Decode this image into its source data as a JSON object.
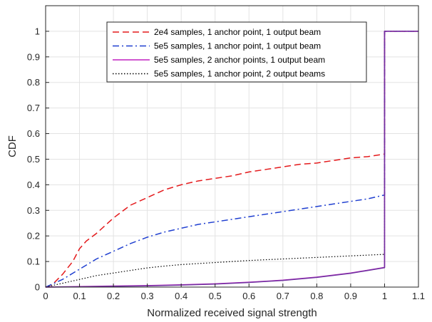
{
  "chart_data": {
    "type": "line",
    "title": "",
    "xlabel": "Normalized received signal strength",
    "ylabel": "CDF",
    "xlim": [
      0,
      1.1
    ],
    "ylim": [
      0,
      1.1
    ],
    "grid": true,
    "legend_position": "top-center",
    "x_ticks": [
      "0",
      "0.1",
      "0.2",
      "0.3",
      "0.4",
      "0.5",
      "0.6",
      "0.7",
      "0.8",
      "0.9",
      "1",
      "1.1"
    ],
    "y_ticks": [
      "0",
      "0.1",
      "0.2",
      "0.3",
      "0.4",
      "0.5",
      "0.6",
      "0.7",
      "0.8",
      "0.9",
      "1"
    ],
    "series": [
      {
        "name": "2e4 samples, 1 anchor point, 1 output beam",
        "color": "#e41a1c",
        "style": "dashed",
        "points": [
          [
            0,
            0
          ],
          [
            0.02,
            0.01
          ],
          [
            0.05,
            0.05
          ],
          [
            0.08,
            0.1
          ],
          [
            0.1,
            0.15
          ],
          [
            0.12,
            0.18
          ],
          [
            0.15,
            0.21
          ],
          [
            0.2,
            0.27
          ],
          [
            0.25,
            0.32
          ],
          [
            0.3,
            0.35
          ],
          [
            0.35,
            0.38
          ],
          [
            0.4,
            0.4
          ],
          [
            0.45,
            0.415
          ],
          [
            0.5,
            0.425
          ],
          [
            0.55,
            0.435
          ],
          [
            0.6,
            0.45
          ],
          [
            0.65,
            0.46
          ],
          [
            0.7,
            0.47
          ],
          [
            0.75,
            0.48
          ],
          [
            0.8,
            0.485
          ],
          [
            0.85,
            0.495
          ],
          [
            0.9,
            0.505
          ],
          [
            0.95,
            0.51
          ],
          [
            1.0,
            0.52
          ],
          [
            1.0,
            1.0
          ],
          [
            1.1,
            1.0
          ]
        ]
      },
      {
        "name": "5e5 samples, 1 anchor point, 1 output beam",
        "color": "#1f3fd0",
        "style": "dashdot",
        "points": [
          [
            0,
            0
          ],
          [
            0.05,
            0.03
          ],
          [
            0.1,
            0.07
          ],
          [
            0.15,
            0.11
          ],
          [
            0.2,
            0.14
          ],
          [
            0.25,
            0.17
          ],
          [
            0.3,
            0.195
          ],
          [
            0.35,
            0.215
          ],
          [
            0.4,
            0.23
          ],
          [
            0.45,
            0.245
          ],
          [
            0.5,
            0.255
          ],
          [
            0.55,
            0.265
          ],
          [
            0.6,
            0.275
          ],
          [
            0.65,
            0.285
          ],
          [
            0.7,
            0.295
          ],
          [
            0.75,
            0.305
          ],
          [
            0.8,
            0.315
          ],
          [
            0.85,
            0.325
          ],
          [
            0.9,
            0.335
          ],
          [
            0.95,
            0.345
          ],
          [
            1.0,
            0.36
          ],
          [
            1.0,
            1.0
          ],
          [
            1.1,
            1.0
          ]
        ]
      },
      {
        "name": "5e5 samples, 2 anchor points, 1 output beam",
        "color": "#c020c0",
        "style": "solid",
        "points": [
          [
            0,
            0
          ],
          [
            0.1,
            0.002
          ],
          [
            0.2,
            0.004
          ],
          [
            0.3,
            0.006
          ],
          [
            0.4,
            0.009
          ],
          [
            0.5,
            0.013
          ],
          [
            0.6,
            0.019
          ],
          [
            0.7,
            0.027
          ],
          [
            0.8,
            0.039
          ],
          [
            0.9,
            0.055
          ],
          [
            1.0,
            0.077
          ],
          [
            1.0,
            1.0
          ],
          [
            1.1,
            1.0
          ]
        ]
      },
      {
        "name": "5e5 samples, 1 anchor point, 2 output beams",
        "color": "#000000",
        "style": "dotted",
        "points": [
          [
            0,
            0
          ],
          [
            0.05,
            0.015
          ],
          [
            0.1,
            0.03
          ],
          [
            0.15,
            0.045
          ],
          [
            0.2,
            0.055
          ],
          [
            0.25,
            0.065
          ],
          [
            0.3,
            0.075
          ],
          [
            0.35,
            0.082
          ],
          [
            0.4,
            0.088
          ],
          [
            0.45,
            0.092
          ],
          [
            0.5,
            0.096
          ],
          [
            0.55,
            0.1
          ],
          [
            0.6,
            0.104
          ],
          [
            0.65,
            0.107
          ],
          [
            0.7,
            0.11
          ],
          [
            0.75,
            0.113
          ],
          [
            0.8,
            0.116
          ],
          [
            0.85,
            0.119
          ],
          [
            0.9,
            0.122
          ],
          [
            0.95,
            0.125
          ],
          [
            1.0,
            0.128
          ],
          [
            1.0,
            1.0
          ],
          [
            1.1,
            1.0
          ]
        ]
      },
      {
        "name": "",
        "color": "#7030a0",
        "style": "solid",
        "points": [
          [
            0,
            0
          ],
          [
            0.1,
            0.001
          ],
          [
            0.2,
            0.003
          ],
          [
            0.3,
            0.005
          ],
          [
            0.4,
            0.008
          ],
          [
            0.5,
            0.012
          ],
          [
            0.6,
            0.018
          ],
          [
            0.7,
            0.026
          ],
          [
            0.8,
            0.038
          ],
          [
            0.9,
            0.054
          ],
          [
            1.0,
            0.076
          ],
          [
            1.0,
            1.0
          ],
          [
            1.1,
            1.0
          ]
        ]
      }
    ]
  }
}
